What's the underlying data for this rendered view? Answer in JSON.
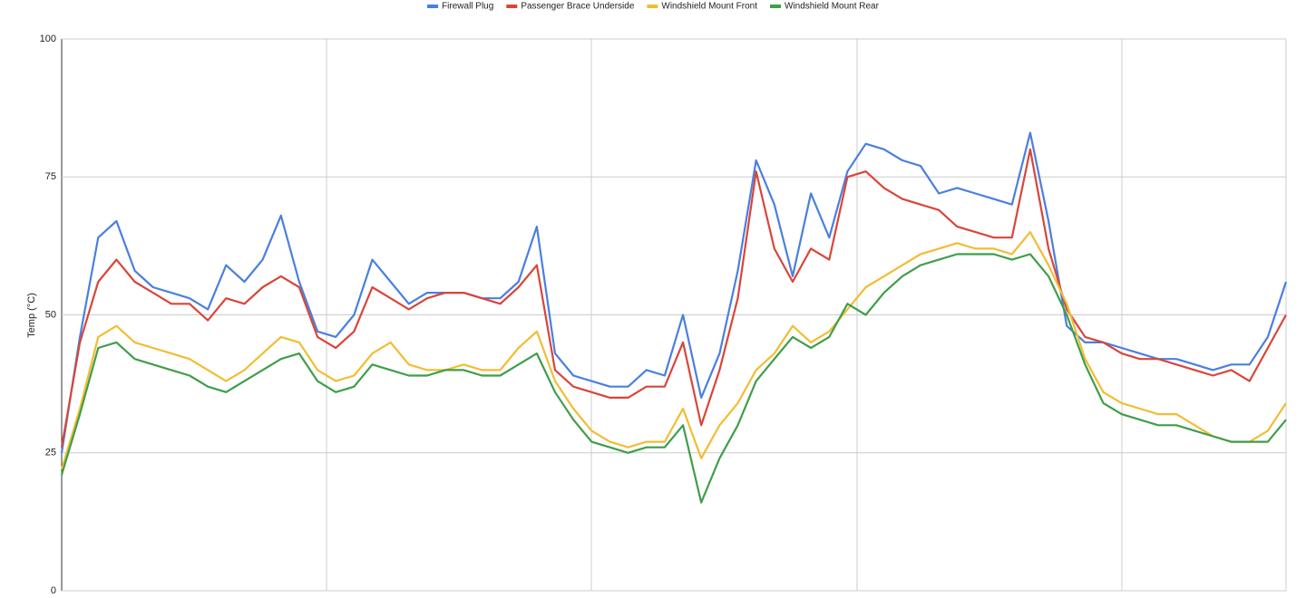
{
  "chart_data": {
    "type": "line",
    "y_label": "Temp (°C)",
    "categories": [
      null,
      null,
      null,
      null,
      null,
      null,
      null,
      null,
      null,
      null,
      null,
      null,
      null,
      null,
      null,
      null,
      null,
      null,
      null,
      null,
      null,
      null,
      null,
      null,
      null,
      null,
      null,
      null,
      null,
      null,
      null,
      null,
      null,
      null,
      null,
      null,
      null,
      null,
      null,
      null,
      null,
      null,
      null,
      null,
      null,
      null,
      null,
      null,
      null,
      null,
      null,
      null,
      null,
      null,
      null,
      null,
      null,
      null,
      null,
      null,
      null,
      null,
      null,
      null,
      null,
      null,
      null,
      null
    ],
    "series": [
      {
        "name": "Firewall Plug",
        "color": "#4a7fe0",
        "values": [
          25,
          46,
          64,
          67,
          58,
          55,
          54,
          53,
          51,
          59,
          56,
          60,
          68,
          56,
          47,
          46,
          50,
          60,
          56,
          52,
          54,
          54,
          54,
          53,
          53,
          56,
          66,
          43,
          39,
          38,
          37,
          37,
          40,
          39,
          50,
          35,
          43,
          58,
          78,
          70,
          57,
          72,
          64,
          76,
          81,
          80,
          78,
          77,
          72,
          73,
          72,
          71,
          70,
          83,
          67,
          48,
          45,
          45,
          44,
          43,
          42,
          42,
          41,
          40,
          41,
          41,
          46,
          56
        ]
      },
      {
        "name": "Passenger Brace Underside",
        "color": "#d9453a",
        "values": [
          26,
          45,
          56,
          60,
          56,
          54,
          52,
          52,
          49,
          53,
          52,
          55,
          57,
          55,
          46,
          44,
          47,
          55,
          53,
          51,
          53,
          54,
          54,
          53,
          52,
          55,
          59,
          40,
          37,
          36,
          35,
          35,
          37,
          37,
          45,
          30,
          40,
          53,
          76,
          62,
          56,
          62,
          60,
          75,
          76,
          73,
          71,
          70,
          69,
          66,
          65,
          64,
          64,
          80,
          62,
          51,
          46,
          45,
          43,
          42,
          42,
          41,
          40,
          39,
          40,
          38,
          44,
          50
        ]
      },
      {
        "name": "Windshield Mount Front",
        "color": "#f2bd33",
        "values": [
          22,
          33,
          46,
          48,
          45,
          44,
          43,
          42,
          40,
          38,
          40,
          43,
          46,
          45,
          40,
          38,
          39,
          43,
          45,
          41,
          40,
          40,
          41,
          40,
          40,
          44,
          47,
          38,
          33,
          29,
          27,
          26,
          27,
          27,
          33,
          24,
          30,
          34,
          40,
          43,
          48,
          45,
          47,
          51,
          55,
          57,
          59,
          61,
          62,
          63,
          62,
          62,
          61,
          65,
          59,
          52,
          42,
          36,
          34,
          33,
          32,
          32,
          30,
          28,
          27,
          27,
          29,
          34
        ]
      },
      {
        "name": "Windshield Mount Rear",
        "color": "#3f9e4a",
        "values": [
          21,
          32,
          44,
          45,
          42,
          41,
          40,
          39,
          37,
          36,
          38,
          40,
          42,
          43,
          38,
          36,
          37,
          41,
          40,
          39,
          39,
          40,
          40,
          39,
          39,
          41,
          43,
          36,
          31,
          27,
          26,
          25,
          26,
          26,
          30,
          16,
          24,
          30,
          38,
          42,
          46,
          44,
          46,
          52,
          50,
          54,
          57,
          59,
          60,
          61,
          61,
          61,
          60,
          61,
          57,
          50,
          41,
          34,
          32,
          31,
          30,
          30,
          29,
          28,
          27,
          27,
          27,
          31
        ]
      }
    ],
    "ylim": [
      0,
      100
    ],
    "yticks": [
      0,
      25,
      50,
      75,
      100
    ],
    "grid": true,
    "legend": "top"
  }
}
